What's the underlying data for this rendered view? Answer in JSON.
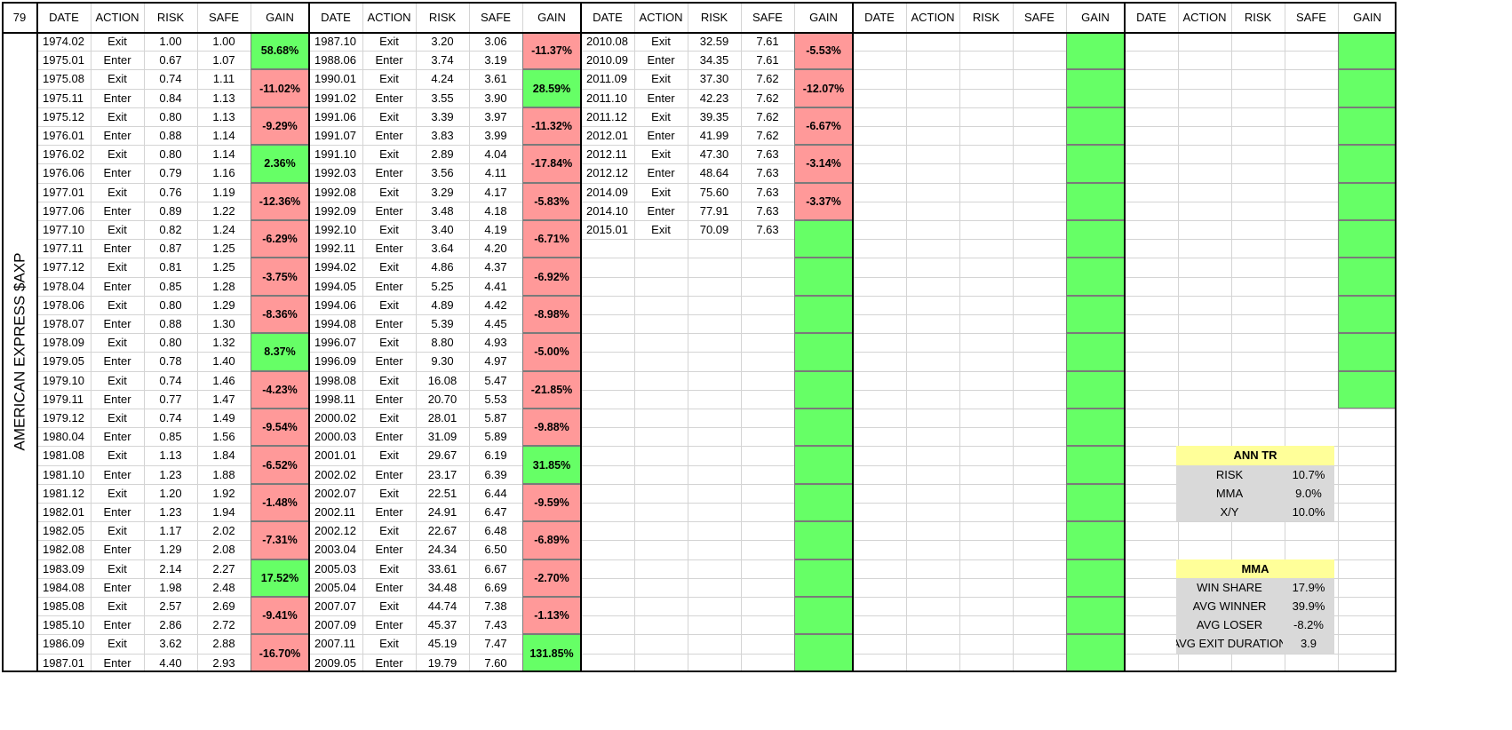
{
  "sheet": {
    "cell_ref": "79",
    "title": "AMERICAN EXPRESS $AXP",
    "headers": [
      "DATE",
      "ACTION",
      "RISK",
      "SAFE",
      "GAIN"
    ],
    "colors": {
      "gain_positive": "#66ff66",
      "gain_negative": "#ff9999",
      "stat_header": "#ffff99",
      "stat_body": "#d9d9d9",
      "grid_light": "#d4d4d4",
      "grid_dark": "#000000"
    },
    "blocks": [
      {
        "rows": [
          {
            "date": "1974.02",
            "action": "Exit",
            "risk": "1.00",
            "safe": "1.00"
          },
          {
            "date": "1975.01",
            "action": "Enter",
            "risk": "0.67",
            "safe": "1.07"
          },
          {
            "date": "1975.08",
            "action": "Exit",
            "risk": "0.74",
            "safe": "1.11"
          },
          {
            "date": "1975.11",
            "action": "Enter",
            "risk": "0.84",
            "safe": "1.13"
          },
          {
            "date": "1975.12",
            "action": "Exit",
            "risk": "0.80",
            "safe": "1.13"
          },
          {
            "date": "1976.01",
            "action": "Enter",
            "risk": "0.88",
            "safe": "1.14"
          },
          {
            "date": "1976.02",
            "action": "Exit",
            "risk": "0.80",
            "safe": "1.14"
          },
          {
            "date": "1976.06",
            "action": "Enter",
            "risk": "0.79",
            "safe": "1.16"
          },
          {
            "date": "1977.01",
            "action": "Exit",
            "risk": "0.76",
            "safe": "1.19"
          },
          {
            "date": "1977.06",
            "action": "Enter",
            "risk": "0.89",
            "safe": "1.22"
          },
          {
            "date": "1977.10",
            "action": "Exit",
            "risk": "0.82",
            "safe": "1.24"
          },
          {
            "date": "1977.11",
            "action": "Enter",
            "risk": "0.87",
            "safe": "1.25"
          },
          {
            "date": "1977.12",
            "action": "Exit",
            "risk": "0.81",
            "safe": "1.25"
          },
          {
            "date": "1978.04",
            "action": "Enter",
            "risk": "0.85",
            "safe": "1.28"
          },
          {
            "date": "1978.06",
            "action": "Exit",
            "risk": "0.80",
            "safe": "1.29"
          },
          {
            "date": "1978.07",
            "action": "Enter",
            "risk": "0.88",
            "safe": "1.30"
          },
          {
            "date": "1978.09",
            "action": "Exit",
            "risk": "0.80",
            "safe": "1.32"
          },
          {
            "date": "1979.05",
            "action": "Enter",
            "risk": "0.78",
            "safe": "1.40"
          },
          {
            "date": "1979.10",
            "action": "Exit",
            "risk": "0.74",
            "safe": "1.46"
          },
          {
            "date": "1979.11",
            "action": "Enter",
            "risk": "0.77",
            "safe": "1.47"
          },
          {
            "date": "1979.12",
            "action": "Exit",
            "risk": "0.74",
            "safe": "1.49"
          },
          {
            "date": "1980.04",
            "action": "Enter",
            "risk": "0.85",
            "safe": "1.56"
          },
          {
            "date": "1981.08",
            "action": "Exit",
            "risk": "1.13",
            "safe": "1.84"
          },
          {
            "date": "1981.10",
            "action": "Enter",
            "risk": "1.23",
            "safe": "1.88"
          },
          {
            "date": "1981.12",
            "action": "Exit",
            "risk": "1.20",
            "safe": "1.92"
          },
          {
            "date": "1982.01",
            "action": "Enter",
            "risk": "1.23",
            "safe": "1.94"
          },
          {
            "date": "1982.05",
            "action": "Exit",
            "risk": "1.17",
            "safe": "2.02"
          },
          {
            "date": "1982.08",
            "action": "Enter",
            "risk": "1.29",
            "safe": "2.08"
          },
          {
            "date": "1983.09",
            "action": "Exit",
            "risk": "2.14",
            "safe": "2.27"
          },
          {
            "date": "1984.08",
            "action": "Enter",
            "risk": "1.98",
            "safe": "2.48"
          },
          {
            "date": "1985.08",
            "action": "Exit",
            "risk": "2.57",
            "safe": "2.69"
          },
          {
            "date": "1985.10",
            "action": "Enter",
            "risk": "2.86",
            "safe": "2.72"
          },
          {
            "date": "1986.09",
            "action": "Exit",
            "risk": "3.62",
            "safe": "2.88"
          },
          {
            "date": "1987.01",
            "action": "Enter",
            "risk": "4.40",
            "safe": "2.93"
          }
        ],
        "gains": [
          {
            "text": "58.68%",
            "sign": "pos"
          },
          {
            "text": "-11.02%",
            "sign": "neg"
          },
          {
            "text": "-9.29%",
            "sign": "neg"
          },
          {
            "text": "2.36%",
            "sign": "pos"
          },
          {
            "text": "-12.36%",
            "sign": "neg"
          },
          {
            "text": "-6.29%",
            "sign": "neg"
          },
          {
            "text": "-3.75%",
            "sign": "neg"
          },
          {
            "text": "-8.36%",
            "sign": "neg"
          },
          {
            "text": "8.37%",
            "sign": "pos"
          },
          {
            "text": "-4.23%",
            "sign": "neg"
          },
          {
            "text": "-9.54%",
            "sign": "neg"
          },
          {
            "text": "-6.52%",
            "sign": "neg"
          },
          {
            "text": "-1.48%",
            "sign": "neg"
          },
          {
            "text": "-7.31%",
            "sign": "neg"
          },
          {
            "text": "17.52%",
            "sign": "pos"
          },
          {
            "text": "-9.41%",
            "sign": "neg"
          },
          {
            "text": "-16.70%",
            "sign": "neg"
          }
        ]
      },
      {
        "rows": [
          {
            "date": "1987.10",
            "action": "Exit",
            "risk": "3.20",
            "safe": "3.06"
          },
          {
            "date": "1988.06",
            "action": "Enter",
            "risk": "3.74",
            "safe": "3.19"
          },
          {
            "date": "1990.01",
            "action": "Exit",
            "risk": "4.24",
            "safe": "3.61"
          },
          {
            "date": "1991.02",
            "action": "Enter",
            "risk": "3.55",
            "safe": "3.90"
          },
          {
            "date": "1991.06",
            "action": "Exit",
            "risk": "3.39",
            "safe": "3.97"
          },
          {
            "date": "1991.07",
            "action": "Enter",
            "risk": "3.83",
            "safe": "3.99"
          },
          {
            "date": "1991.10",
            "action": "Exit",
            "risk": "2.89",
            "safe": "4.04"
          },
          {
            "date": "1992.03",
            "action": "Enter",
            "risk": "3.56",
            "safe": "4.11"
          },
          {
            "date": "1992.08",
            "action": "Exit",
            "risk": "3.29",
            "safe": "4.17"
          },
          {
            "date": "1992.09",
            "action": "Enter",
            "risk": "3.48",
            "safe": "4.18"
          },
          {
            "date": "1992.10",
            "action": "Exit",
            "risk": "3.40",
            "safe": "4.19"
          },
          {
            "date": "1992.11",
            "action": "Enter",
            "risk": "3.64",
            "safe": "4.20"
          },
          {
            "date": "1994.02",
            "action": "Exit",
            "risk": "4.86",
            "safe": "4.37"
          },
          {
            "date": "1994.05",
            "action": "Enter",
            "risk": "5.25",
            "safe": "4.41"
          },
          {
            "date": "1994.06",
            "action": "Exit",
            "risk": "4.89",
            "safe": "4.42"
          },
          {
            "date": "1994.08",
            "action": "Enter",
            "risk": "5.39",
            "safe": "4.45"
          },
          {
            "date": "1996.07",
            "action": "Exit",
            "risk": "8.80",
            "safe": "4.93"
          },
          {
            "date": "1996.09",
            "action": "Enter",
            "risk": "9.30",
            "safe": "4.97"
          },
          {
            "date": "1998.08",
            "action": "Exit",
            "risk": "16.08",
            "safe": "5.47"
          },
          {
            "date": "1998.11",
            "action": "Enter",
            "risk": "20.70",
            "safe": "5.53"
          },
          {
            "date": "2000.02",
            "action": "Exit",
            "risk": "28.01",
            "safe": "5.87"
          },
          {
            "date": "2000.03",
            "action": "Enter",
            "risk": "31.09",
            "safe": "5.89"
          },
          {
            "date": "2001.01",
            "action": "Exit",
            "risk": "29.67",
            "safe": "6.19"
          },
          {
            "date": "2002.02",
            "action": "Enter",
            "risk": "23.17",
            "safe": "6.39"
          },
          {
            "date": "2002.07",
            "action": "Exit",
            "risk": "22.51",
            "safe": "6.44"
          },
          {
            "date": "2002.11",
            "action": "Enter",
            "risk": "24.91",
            "safe": "6.47"
          },
          {
            "date": "2002.12",
            "action": "Exit",
            "risk": "22.67",
            "safe": "6.48"
          },
          {
            "date": "2003.04",
            "action": "Enter",
            "risk": "24.34",
            "safe": "6.50"
          },
          {
            "date": "2005.03",
            "action": "Exit",
            "risk": "33.61",
            "safe": "6.67"
          },
          {
            "date": "2005.04",
            "action": "Enter",
            "risk": "34.48",
            "safe": "6.69"
          },
          {
            "date": "2007.07",
            "action": "Exit",
            "risk": "44.74",
            "safe": "7.38"
          },
          {
            "date": "2007.09",
            "action": "Enter",
            "risk": "45.37",
            "safe": "7.43"
          },
          {
            "date": "2007.11",
            "action": "Exit",
            "risk": "45.19",
            "safe": "7.47"
          },
          {
            "date": "2009.05",
            "action": "Enter",
            "risk": "19.79",
            "safe": "7.60"
          }
        ],
        "gains": [
          {
            "text": "-11.37%",
            "sign": "neg"
          },
          {
            "text": "28.59%",
            "sign": "pos"
          },
          {
            "text": "-11.32%",
            "sign": "neg"
          },
          {
            "text": "-17.84%",
            "sign": "neg"
          },
          {
            "text": "-5.83%",
            "sign": "neg"
          },
          {
            "text": "-6.71%",
            "sign": "neg"
          },
          {
            "text": "-6.92%",
            "sign": "neg"
          },
          {
            "text": "-8.98%",
            "sign": "neg"
          },
          {
            "text": "-5.00%",
            "sign": "neg"
          },
          {
            "text": "-21.85%",
            "sign": "neg"
          },
          {
            "text": "-9.88%",
            "sign": "neg"
          },
          {
            "text": "31.85%",
            "sign": "pos"
          },
          {
            "text": "-9.59%",
            "sign": "neg"
          },
          {
            "text": "-6.89%",
            "sign": "neg"
          },
          {
            "text": "-2.70%",
            "sign": "neg"
          },
          {
            "text": "-1.13%",
            "sign": "neg"
          },
          {
            "text": "131.85%",
            "sign": "pos"
          }
        ]
      },
      {
        "rows": [
          {
            "date": "2010.08",
            "action": "Exit",
            "risk": "32.59",
            "safe": "7.61"
          },
          {
            "date": "2010.09",
            "action": "Enter",
            "risk": "34.35",
            "safe": "7.61"
          },
          {
            "date": "2011.09",
            "action": "Exit",
            "risk": "37.30",
            "safe": "7.62"
          },
          {
            "date": "2011.10",
            "action": "Enter",
            "risk": "42.23",
            "safe": "7.62"
          },
          {
            "date": "2011.12",
            "action": "Exit",
            "risk": "39.35",
            "safe": "7.62"
          },
          {
            "date": "2012.01",
            "action": "Enter",
            "risk": "41.99",
            "safe": "7.62"
          },
          {
            "date": "2012.11",
            "action": "Exit",
            "risk": "47.30",
            "safe": "7.63"
          },
          {
            "date": "2012.12",
            "action": "Enter",
            "risk": "48.64",
            "safe": "7.63"
          },
          {
            "date": "2014.09",
            "action": "Exit",
            "risk": "75.60",
            "safe": "7.63"
          },
          {
            "date": "2014.10",
            "action": "Enter",
            "risk": "77.91",
            "safe": "7.63"
          },
          {
            "date": "2015.01",
            "action": "Exit",
            "risk": "70.09",
            "safe": "7.63"
          }
        ],
        "gains": [
          {
            "text": "-5.53%",
            "sign": "neg"
          },
          {
            "text": "-12.07%",
            "sign": "neg"
          },
          {
            "text": "-6.67%",
            "sign": "neg"
          },
          {
            "text": "-3.14%",
            "sign": "neg"
          },
          {
            "text": "-3.37%",
            "sign": "neg"
          },
          {
            "text": "",
            "sign": "pos"
          },
          {
            "text": "",
            "sign": "pos"
          },
          {
            "text": "",
            "sign": "pos"
          },
          {
            "text": "",
            "sign": "pos"
          },
          {
            "text": "",
            "sign": "pos"
          },
          {
            "text": "",
            "sign": "pos"
          },
          {
            "text": "",
            "sign": "pos"
          },
          {
            "text": "",
            "sign": "pos"
          },
          {
            "text": "",
            "sign": "pos"
          },
          {
            "text": "",
            "sign": "pos"
          },
          {
            "text": "",
            "sign": "pos"
          },
          {
            "text": "",
            "sign": "pos"
          }
        ]
      },
      {
        "rows": [],
        "gains": [
          {
            "text": "",
            "sign": "pos"
          },
          {
            "text": "",
            "sign": "pos"
          },
          {
            "text": "",
            "sign": "pos"
          },
          {
            "text": "",
            "sign": "pos"
          },
          {
            "text": "",
            "sign": "pos"
          },
          {
            "text": "",
            "sign": "pos"
          },
          {
            "text": "",
            "sign": "pos"
          },
          {
            "text": "",
            "sign": "pos"
          },
          {
            "text": "",
            "sign": "pos"
          },
          {
            "text": "",
            "sign": "pos"
          },
          {
            "text": "",
            "sign": "pos"
          },
          {
            "text": "",
            "sign": "pos"
          },
          {
            "text": "",
            "sign": "pos"
          },
          {
            "text": "",
            "sign": "pos"
          },
          {
            "text": "",
            "sign": "pos"
          },
          {
            "text": "",
            "sign": "pos"
          },
          {
            "text": "",
            "sign": "pos"
          }
        ]
      },
      {
        "rows": [],
        "gains": [
          {
            "text": "",
            "sign": "pos"
          },
          {
            "text": "",
            "sign": "pos"
          },
          {
            "text": "",
            "sign": "pos"
          },
          {
            "text": "",
            "sign": "pos"
          },
          {
            "text": "",
            "sign": "pos"
          },
          {
            "text": "",
            "sign": "pos"
          },
          {
            "text": "",
            "sign": "pos"
          },
          {
            "text": "",
            "sign": "pos"
          },
          {
            "text": "",
            "sign": "pos"
          },
          {
            "text": "",
            "sign": "pos"
          }
        ]
      }
    ],
    "stats": [
      {
        "title": "ANN TR",
        "rows": [
          {
            "label": "RISK",
            "value": "10.7%"
          },
          {
            "label": "MMA",
            "value": "9.0%"
          },
          {
            "label": "X/Y",
            "value": "10.0%"
          }
        ]
      },
      {
        "title": "MMA",
        "rows": [
          {
            "label": "WIN SHARE",
            "value": "17.9%"
          },
          {
            "label": "AVG WINNER",
            "value": "39.9%"
          },
          {
            "label": "AVG LOSER",
            "value": "-8.2%"
          },
          {
            "label": "AVG EXIT DURATION",
            "value": "3.9"
          }
        ]
      }
    ]
  }
}
